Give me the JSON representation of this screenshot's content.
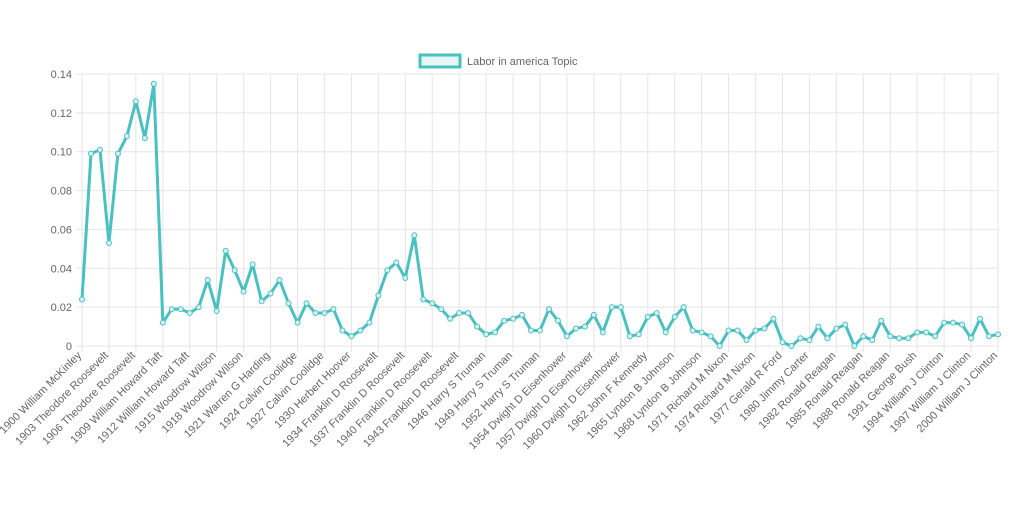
{
  "chart_data": {
    "type": "line",
    "categories": [
      "1900 William McKinley",
      null,
      null,
      "1903 Theodore Roosevelt",
      null,
      null,
      "1906 Theodore Roosevelt",
      null,
      null,
      "1909 William Howard Taft",
      null,
      null,
      "1912 William Howard Taft",
      null,
      null,
      "1915 Woodrow Wilson",
      null,
      null,
      "1918 Woodrow Wilson",
      null,
      null,
      "1921 Warren G Harding",
      null,
      null,
      "1924 Calvin Coolidge",
      null,
      null,
      "1927 Calvin Coolidge",
      null,
      null,
      "1930 Herbert Hoover",
      null,
      null,
      "1934 Franklin D Roosevelt",
      null,
      null,
      "1937 Franklin D Roosevelt",
      null,
      null,
      "1940 Franklin D Roosevelt",
      null,
      null,
      "1943 Franklin D Roosevelt",
      null,
      null,
      "1946 Harry S Truman",
      null,
      null,
      "1949 Harry S Truman",
      null,
      null,
      "1952 Harry S Truman",
      null,
      null,
      "1954 Dwight D Eisenhower",
      null,
      null,
      "1957 Dwight D Eisenhower",
      null,
      null,
      "1960 Dwight D Eisenhower",
      null,
      null,
      "1962 John F Kennedy",
      null,
      null,
      "1965 Lyndon B Johnson",
      null,
      null,
      "1968 Lyndon B Johnson",
      null,
      null,
      "1971 Richard M Nixon",
      null,
      null,
      "1974 Richard M Nixon",
      null,
      null,
      "1977 Gerald R Ford",
      null,
      null,
      "1980 Jimmy Carter",
      null,
      null,
      "1982 Ronald Reagan",
      null,
      null,
      "1985 Ronald Reagan",
      null,
      null,
      "1988 Ronald Reagan",
      null,
      null,
      "1991 George Bush",
      null,
      null,
      "1994 William J Clinton",
      null,
      null,
      "1997 William J Clinton",
      null,
      null,
      "2000 William J Clinton"
    ],
    "series": [
      {
        "name": "Labor in america Topic",
        "color": "#4bc0c0",
        "values": [
          0.024,
          0.099,
          0.101,
          0.053,
          0.099,
          0.108,
          0.126,
          0.107,
          0.135,
          0.012,
          0.019,
          0.019,
          0.017,
          0.02,
          0.034,
          0.018,
          0.049,
          0.039,
          0.028,
          0.042,
          0.023,
          0.027,
          0.034,
          0.022,
          0.012,
          0.022,
          0.017,
          0.017,
          0.019,
          0.008,
          0.005,
          0.008,
          0.012,
          0.026,
          0.039,
          0.043,
          0.035,
          0.057,
          0.024,
          0.022,
          0.019,
          0.014,
          0.017,
          0.017,
          0.01,
          0.006,
          0.007,
          0.013,
          0.014,
          0.016,
          0.008,
          0.008,
          0.019,
          0.013,
          0.005,
          0.009,
          0.01,
          0.016,
          0.007,
          0.02,
          0.02,
          0.005,
          0.006,
          0.015,
          0.017,
          0.007,
          0.015,
          0.02,
          0.008,
          0.007,
          0.005,
          0.0,
          0.008,
          0.008,
          0.003,
          0.008,
          0.009,
          0.014,
          0.002,
          0.0,
          0.004,
          0.003,
          0.01,
          0.004,
          0.009,
          0.011,
          0.0,
          0.005,
          0.003,
          0.013,
          0.005,
          0.004,
          0.004,
          0.007,
          0.007,
          0.005,
          0.012,
          0.012,
          0.011,
          0.004,
          0.014,
          0.005,
          0.006
        ]
      }
    ],
    "ylim": [
      0,
      0.14
    ],
    "yticks": [
      0,
      0.02,
      0.04,
      0.06,
      0.08,
      {
        "value": 0.1,
        "label": "0.10"
      },
      0.12,
      0.14
    ],
    "grid": true,
    "legend": "top"
  }
}
